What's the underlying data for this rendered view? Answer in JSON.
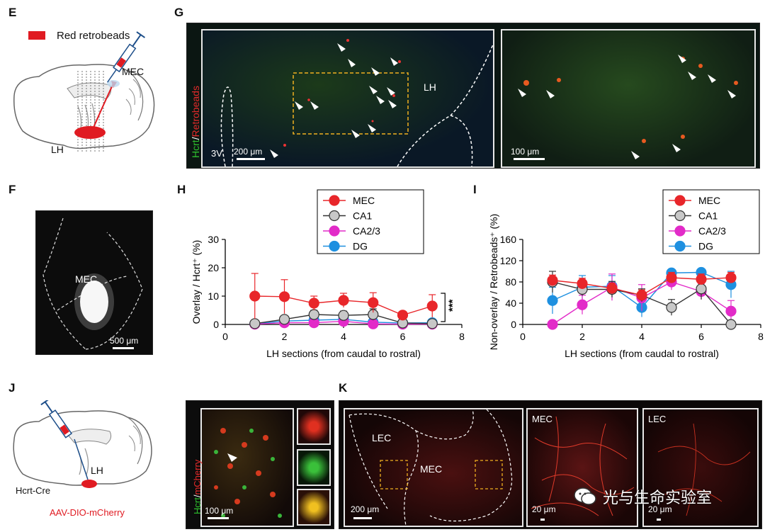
{
  "panels": {
    "E": {
      "label": "E",
      "legend": "Red retrobeads",
      "mec": "MEC",
      "lh": "LH"
    },
    "F": {
      "label": "F",
      "mec": "MEC",
      "scale": "500 μm"
    },
    "G": {
      "label": "G",
      "stain_green": "Hcrt",
      "stain_sep": "/",
      "stain_red": "Retrobeads",
      "region_3v": "3V",
      "region_lh": "LH",
      "scale_left": "200 μm",
      "scale_right": "100 μm"
    },
    "H": {
      "label": "H"
    },
    "I": {
      "label": "I"
    },
    "J": {
      "label": "J",
      "lh": "LH",
      "mouse": "Hcrt-Cre",
      "virus": "AAV-DIO-mCherry",
      "stain_green": "Hcrt",
      "stain_sep": "/",
      "stain_red": "mCherry",
      "scale": "100 μm"
    },
    "K": {
      "label": "K",
      "lec": "LEC",
      "mec": "MEC",
      "mec2": "MEC",
      "lec2": "LEC",
      "scale_main": "200 μm",
      "scale_mec": "20 μm",
      "scale_lec": "20 μm"
    }
  },
  "watermark": "光与生命实验室",
  "colors": {
    "MEC": "#e8262a",
    "CA1": "#c8c8c8",
    "CA2/3": "#e22bc8",
    "DG": "#1e90e0"
  },
  "chart_data": [
    {
      "type": "line",
      "panel": "H",
      "ylabel": "Overlay / Hcrt⁺ (%)",
      "xlabel": "LH sections (from caudal to rostral)",
      "xlim": [
        0,
        8
      ],
      "ylim": [
        0,
        30
      ],
      "xticks": [
        0,
        2,
        4,
        6,
        8
      ],
      "yticks": [
        0,
        10,
        20,
        30
      ],
      "legend": [
        "MEC",
        "CA1",
        "CA2/3",
        "DG"
      ],
      "legend_position": "top-right",
      "annotation": "***",
      "x": [
        1,
        2,
        3,
        4,
        5,
        6,
        7
      ],
      "series": [
        {
          "name": "MEC",
          "values": [
            10,
            9.8,
            7.5,
            8.5,
            7.7,
            3.3,
            6.5
          ],
          "err": [
            8,
            6,
            2.5,
            2.5,
            3.5,
            0.6,
            4
          ]
        },
        {
          "name": "CA1",
          "values": [
            0.3,
            1.8,
            3.5,
            3.2,
            3.5,
            0.5,
            0.3
          ],
          "err": [
            0.2,
            1,
            1.5,
            1.5,
            2,
            0.3,
            0.2
          ]
        },
        {
          "name": "CA2/3",
          "values": [
            0.1,
            0.6,
            0.6,
            1.1,
            0.2,
            0.1,
            0.1
          ],
          "err": [
            0.1,
            0.4,
            0.4,
            0.6,
            0.2,
            0.1,
            0.1
          ]
        },
        {
          "name": "DG",
          "values": [
            0.2,
            1.2,
            1.5,
            1.8,
            0.8,
            0.5,
            0.6
          ],
          "err": [
            0.2,
            0.8,
            0.8,
            0.8,
            0.5,
            0.3,
            0.4
          ]
        }
      ]
    },
    {
      "type": "line",
      "panel": "I",
      "ylabel": "Non-overlay / Retrobeads⁺ (%)",
      "xlabel": "LH sections (from caudal to rostral)",
      "xlim": [
        0,
        8
      ],
      "ylim": [
        0,
        160
      ],
      "xticks": [
        0,
        2,
        4,
        6,
        8
      ],
      "yticks": [
        0,
        40,
        80,
        120,
        160
      ],
      "legend": [
        "MEC",
        "CA1",
        "CA2/3",
        "DG"
      ],
      "legend_position": "top-right",
      "x": [
        1,
        2,
        3,
        4,
        5,
        6,
        7
      ],
      "series": [
        {
          "name": "MEC",
          "values": [
            83,
            77,
            68,
            55,
            88,
            85,
            88
          ],
          "err": [
            10,
            10,
            10,
            10,
            10,
            10,
            10
          ]
        },
        {
          "name": "CA1",
          "values": [
            80,
            66,
            66,
            55,
            32,
            67,
            0
          ],
          "err": [
            20,
            12,
            15,
            12,
            15,
            20,
            0
          ]
        },
        {
          "name": "CA2/3",
          "values": [
            0,
            37,
            70,
            50,
            80,
            62,
            25
          ],
          "err": [
            0,
            18,
            25,
            25,
            15,
            15,
            20
          ]
        },
        {
          "name": "DG",
          "values": [
            45,
            70,
            72,
            32,
            97,
            98,
            75
          ],
          "err": [
            25,
            22,
            20,
            18,
            5,
            5,
            25
          ]
        }
      ]
    }
  ]
}
